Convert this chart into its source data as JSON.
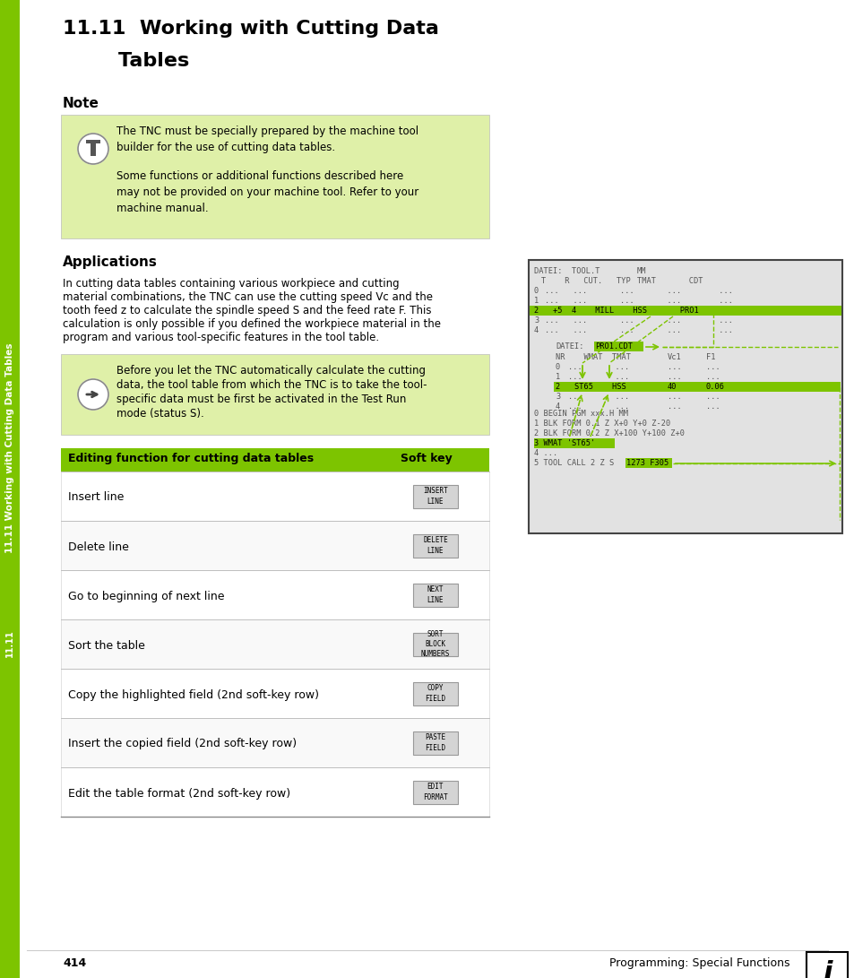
{
  "title_line1": "11.11  Working with Cutting Data",
  "title_line2": "        Tables",
  "note_heading": "Note",
  "note_text1": "The TNC must be specially prepared by the machine tool\nbuilder for the use of cutting data tables.",
  "note_text2": "Some functions or additional functions described here\nmay not be provided on your machine tool. Refer to your\nmachine manual.",
  "apps_heading": "Applications",
  "apps_body_lines": [
    "In cutting data tables containing various workpiece and cutting",
    "material combinations, the TNC can use the cutting speed Vᴄ and the",
    "tooth feed z to calculate the spindle speed S and the feed rate F. This",
    "calculation is only possible if you defined the workpiece material in the",
    "program and various tool-specific features in the tool table."
  ],
  "apps_note_lines": [
    "Before you let the TNC automatically calculate the cutting",
    "data, the tool table from which the TNC is to take the tool-",
    "specific data must be first be activated in the Test Run",
    "mode (status S)."
  ],
  "table_header_col1": "Editing function for cutting data tables",
  "table_header_col2": "Soft key",
  "table_rows": [
    {
      "desc": "Insert line",
      "btn_lines": [
        "INSERT",
        "LINE"
      ]
    },
    {
      "desc": "Delete line",
      "btn_lines": [
        "DELETE",
        "LINE"
      ]
    },
    {
      "desc": "Go to beginning of next line",
      "btn_lines": [
        "NEXT",
        "LINE"
      ]
    },
    {
      "desc": "Sort the table",
      "btn_lines": [
        "SORT",
        "BLOCK",
        "NUMBERS"
      ]
    },
    {
      "desc": "Copy the highlighted field (2nd soft-key row)",
      "btn_lines": [
        "COPY",
        "FIELD"
      ]
    },
    {
      "desc": "Insert the copied field (2nd soft-key row)",
      "btn_lines": [
        "PASTE",
        "FIELD"
      ]
    },
    {
      "desc": "Edit the table format (2nd soft-key row)",
      "btn_lines": [
        "EDIT",
        "FORMAT"
      ]
    }
  ],
  "footer_page": "414",
  "footer_text": "Programming: Special Functions",
  "bg_color": "#ffffff",
  "sidebar_bg": "#7dc400",
  "note_bg": "#dff0a8",
  "table_header_bg": "#7dc400",
  "btn_bg": "#d4d4d4",
  "btn_border": "#999999",
  "highlight_green": "#7dc400",
  "screen_bg": "#e2e2e2",
  "sidebar_text": "11.11 Working with Cutting Data Tables",
  "sidebar_label": "11.11"
}
